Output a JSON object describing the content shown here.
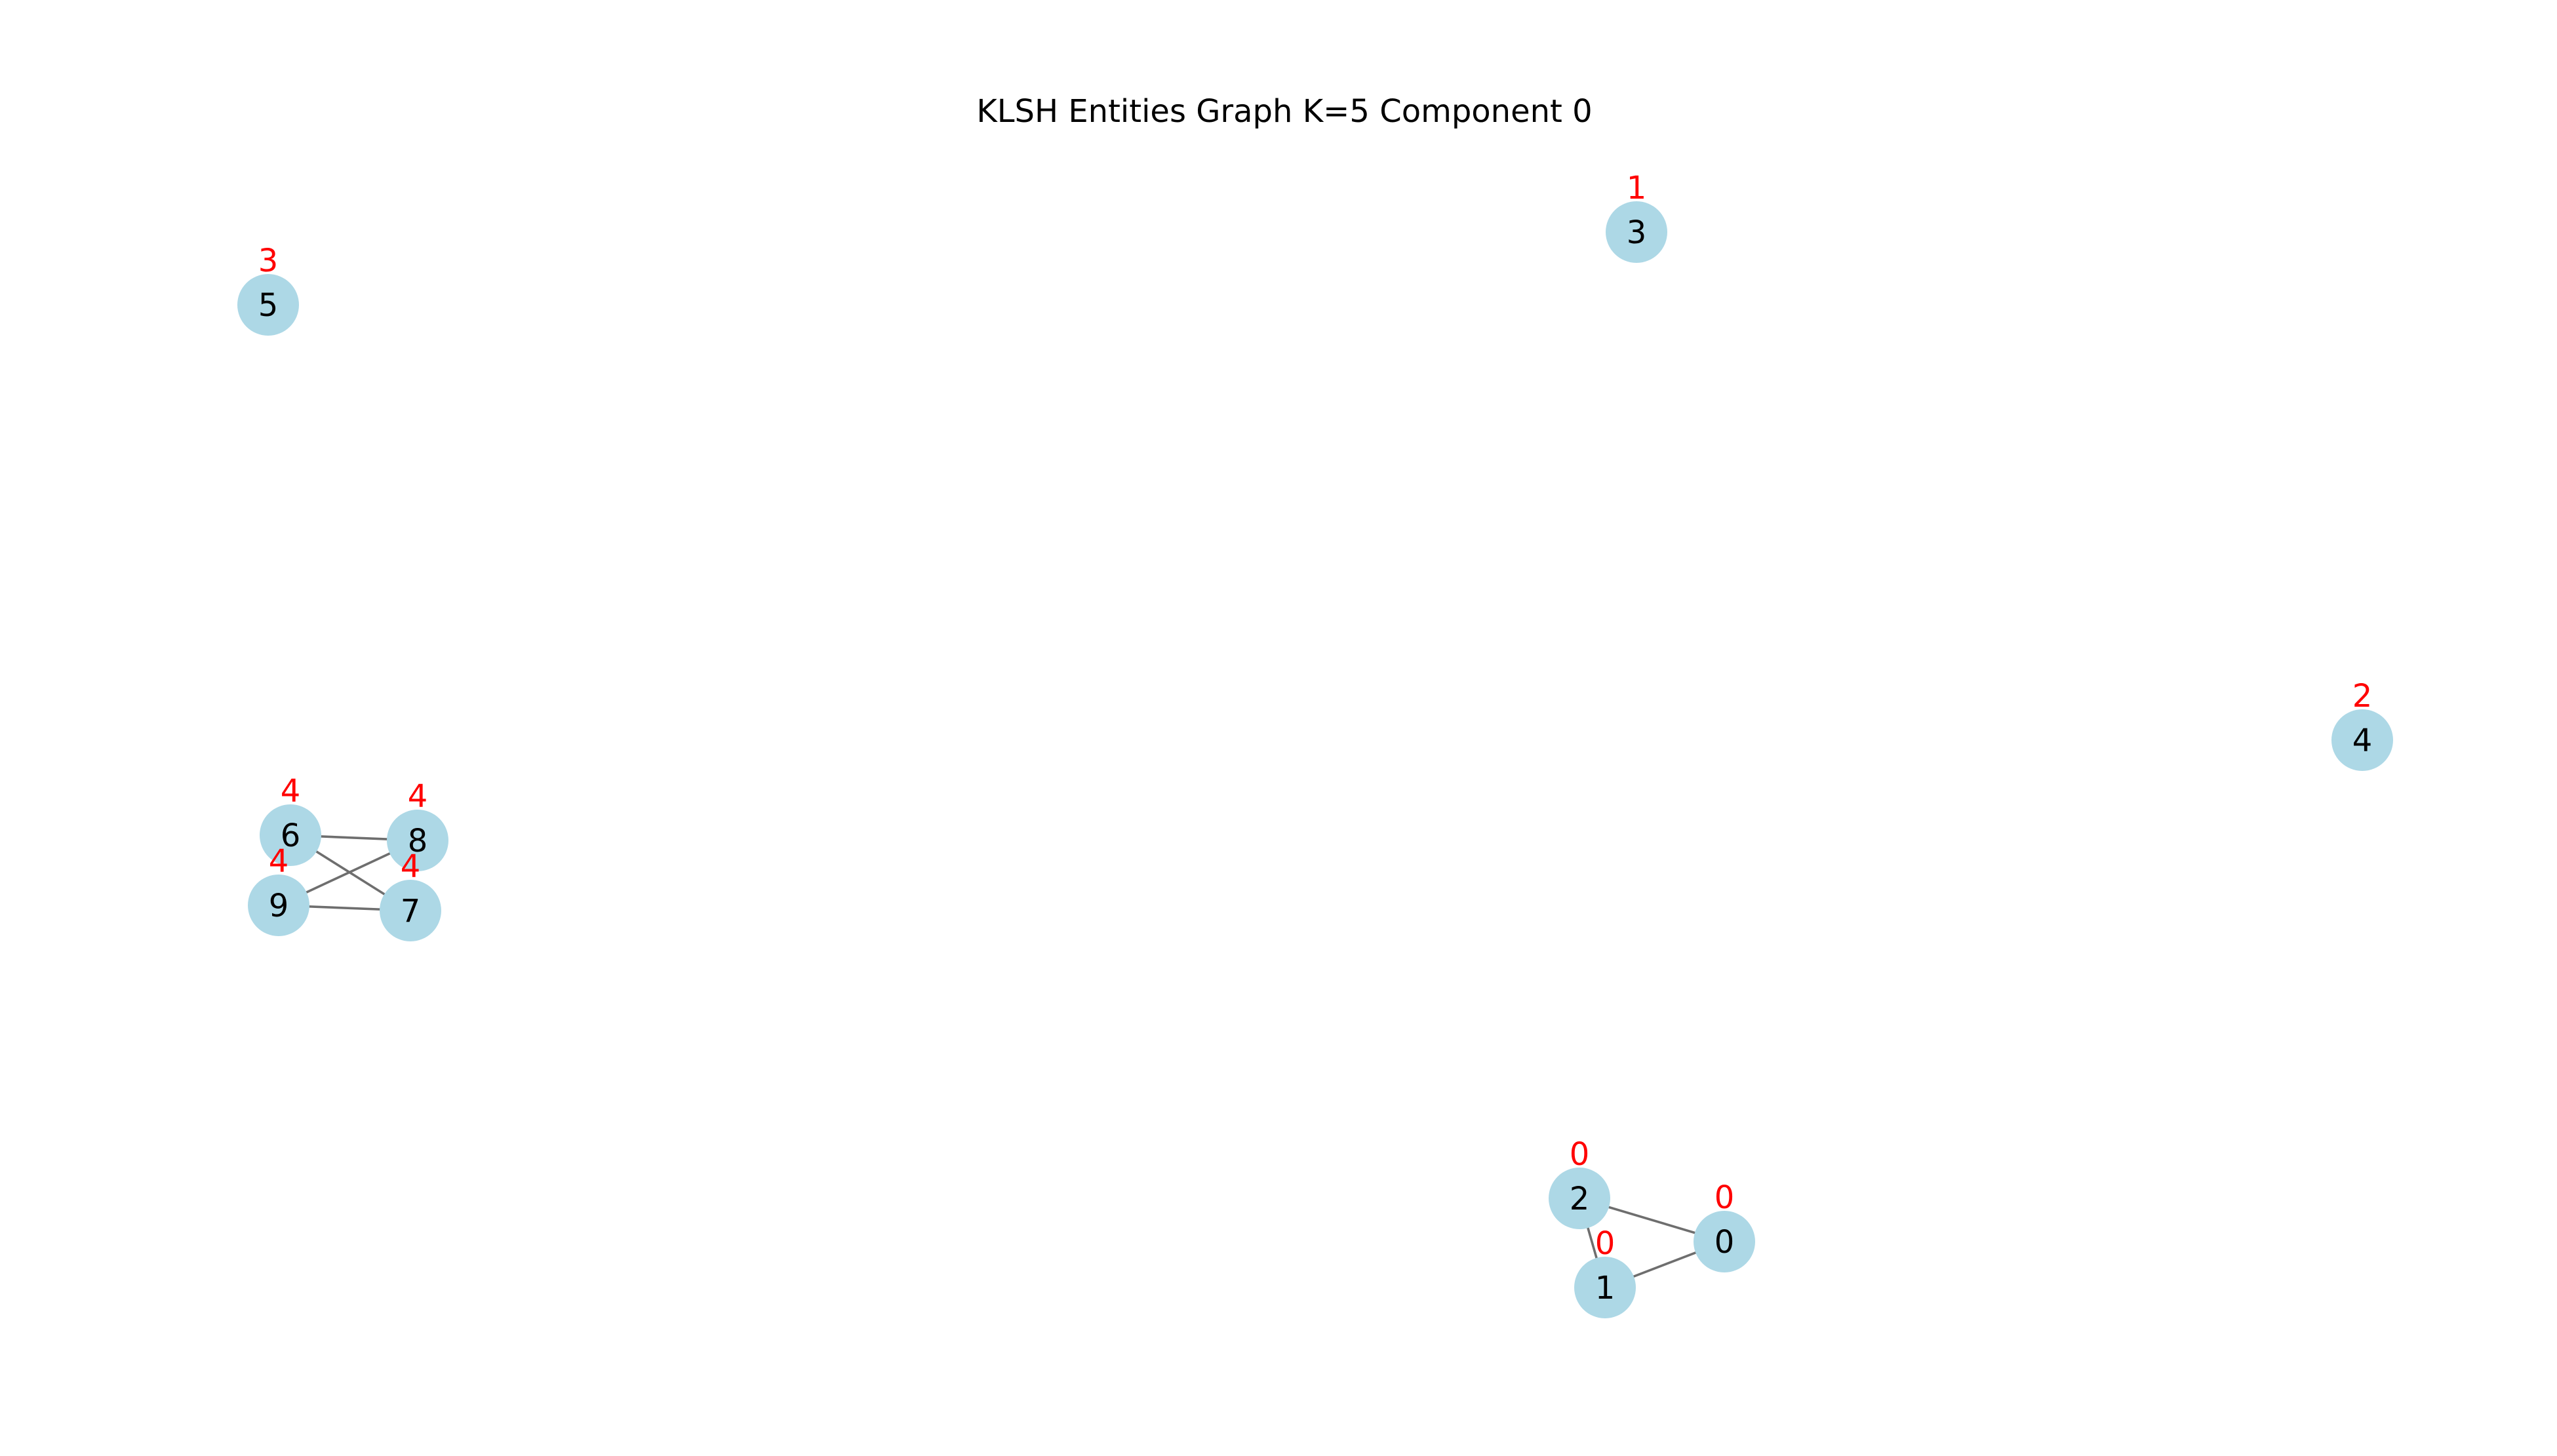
{
  "title": "KLSH Entities Graph K=5 Component 0",
  "colors": {
    "node_fill": "#add8e6",
    "edge": "#6e6e6e",
    "node_label": "#000000",
    "component_label": "#ff0000"
  },
  "nodes": [
    {
      "id": "0",
      "component": "0"
    },
    {
      "id": "1",
      "component": "0"
    },
    {
      "id": "2",
      "component": "0"
    },
    {
      "id": "3",
      "component": "1"
    },
    {
      "id": "4",
      "component": "2"
    },
    {
      "id": "5",
      "component": "3"
    },
    {
      "id": "6",
      "component": "4"
    },
    {
      "id": "7",
      "component": "4"
    },
    {
      "id": "8",
      "component": "4"
    },
    {
      "id": "9",
      "component": "4"
    }
  ],
  "edges": [
    [
      "2",
      "0"
    ],
    [
      "2",
      "1"
    ],
    [
      "1",
      "0"
    ],
    [
      "6",
      "8"
    ],
    [
      "6",
      "7"
    ],
    [
      "9",
      "8"
    ],
    [
      "9",
      "7"
    ]
  ]
}
